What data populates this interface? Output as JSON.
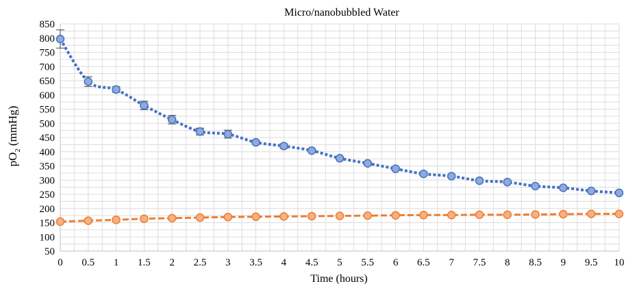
{
  "chart_data": {
    "type": "line",
    "title": "Micro/nanobubbled Water",
    "xlabel": "Time (hours)",
    "ylabel_main": "pO",
    "ylabel_sub": "2",
    "ylabel_unit": "(mmHg)",
    "xlim": [
      0,
      10
    ],
    "ylim": [
      50,
      850
    ],
    "y_ticks": [
      50,
      100,
      150,
      200,
      250,
      300,
      350,
      400,
      450,
      500,
      550,
      600,
      650,
      700,
      750,
      800,
      850
    ],
    "x_ticks": [
      "0",
      "0.5",
      "1",
      "1.5",
      "2",
      "2.5",
      "3",
      "3.5",
      "4",
      "4.5",
      "5",
      "5.5",
      "6",
      "6.5",
      "7",
      "7.5",
      "8",
      "8.5",
      "9",
      "9.5",
      "10"
    ],
    "x": [
      0,
      0.5,
      1,
      1.5,
      2,
      2.5,
      3,
      3.5,
      4,
      4.5,
      5,
      5.5,
      6,
      6.5,
      7,
      7.5,
      8,
      8.5,
      9,
      9.5,
      10
    ],
    "grid": true,
    "series": [
      {
        "color": "#4472c4",
        "marker_fill": "#8faadc",
        "values": [
          797,
          647,
          619,
          563,
          513,
          471,
          462,
          433,
          420,
          404,
          377,
          359,
          340,
          322,
          314,
          298,
          293,
          279,
          273,
          262,
          255
        ],
        "errors": [
          32,
          17,
          10,
          15,
          15,
          12,
          14,
          6,
          8,
          5,
          5,
          5,
          6,
          6,
          5,
          5,
          5,
          4,
          5,
          4,
          4
        ]
      },
      {
        "color": "#ed7d31",
        "marker_fill": "#f4b183",
        "values": [
          154,
          157,
          160,
          164,
          166,
          168,
          170,
          171,
          172,
          173,
          174,
          175,
          176,
          177,
          177,
          178,
          178,
          179,
          180,
          181,
          181
        ],
        "errors": [
          3,
          5,
          4,
          3,
          3,
          3,
          3,
          2,
          2,
          2,
          2,
          2,
          2,
          2,
          2,
          2,
          2,
          2,
          2,
          2,
          2
        ]
      }
    ]
  }
}
